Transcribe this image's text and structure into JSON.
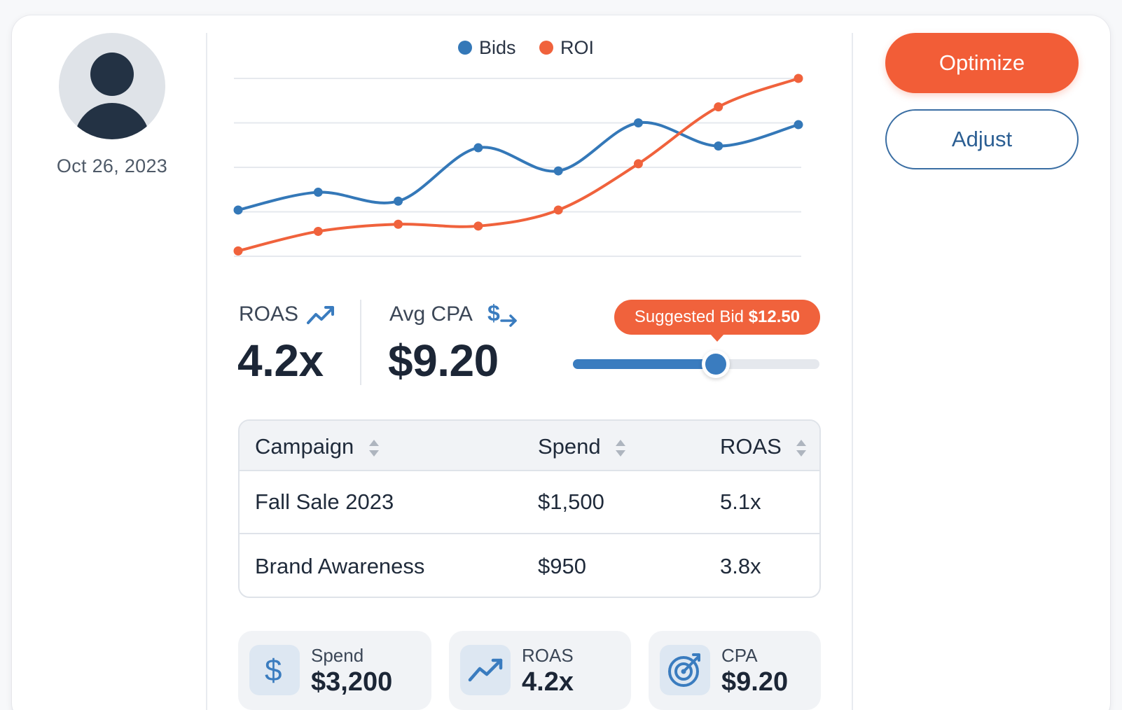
{
  "profile": {
    "date": "Oct 26, 2023"
  },
  "colors": {
    "bids": "#3478b8",
    "roi": "#f0623c",
    "accent": "#f25d37",
    "outline": "#3a6ea3"
  },
  "chart_data": {
    "type": "line",
    "x": [
      1,
      2,
      3,
      4,
      5,
      6,
      7,
      8
    ],
    "legend_position": "top-center",
    "grid": true,
    "ylim": [
      0,
      100
    ],
    "series": [
      {
        "name": "Bids",
        "values": [
          26,
          36,
          31,
          61,
          48,
          75,
          62,
          74
        ]
      },
      {
        "name": "ROI",
        "values": [
          3,
          14,
          18,
          17,
          26,
          52,
          84,
          100
        ]
      }
    ]
  },
  "metrics": {
    "roas": {
      "label": "ROAS",
      "value": "4.2x"
    },
    "avg_cpa": {
      "label": "Avg CPA",
      "value": "$9.20"
    }
  },
  "slider": {
    "tooltip_label": "Suggested Bid",
    "tooltip_value": "$12.50",
    "level": 0.58
  },
  "table": {
    "columns": [
      "Campaign",
      "Spend",
      "ROAS"
    ],
    "rows": [
      [
        "Fall Sale 2023",
        "$1,500",
        "5.1x"
      ],
      [
        "Brand Awareness",
        "$950",
        "3.8x"
      ]
    ]
  },
  "tiles": [
    {
      "icon": "dollar-icon",
      "label": "Spend",
      "value": "$3,200"
    },
    {
      "icon": "trend-up-icon",
      "label": "ROAS",
      "value": "4.2x"
    },
    {
      "icon": "target-icon",
      "label": "CPA",
      "value": "$9.20"
    }
  ],
  "buttons": {
    "optimize": "Optimize",
    "adjust": "Adjust"
  }
}
